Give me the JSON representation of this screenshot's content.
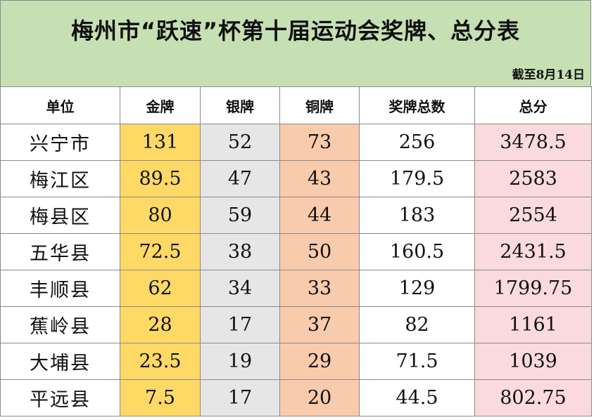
{
  "header": {
    "title": "梅州市“跃速”杯第十届运动会奖牌、总分表",
    "date_note": "截至8月14日"
  },
  "columns": [
    "单位",
    "金牌",
    "银牌",
    "铜牌",
    "奖牌总数",
    "总分"
  ],
  "rows": [
    {
      "unit": "兴宁市",
      "gold": "131",
      "silver": "52",
      "bronze": "73",
      "total": "256",
      "score": "3478.5"
    },
    {
      "unit": "梅江区",
      "gold": "89.5",
      "silver": "47",
      "bronze": "43",
      "total": "179.5",
      "score": "2583"
    },
    {
      "unit": "梅县区",
      "gold": "80",
      "silver": "59",
      "bronze": "44",
      "total": "183",
      "score": "2554"
    },
    {
      "unit": "五华县",
      "gold": "72.5",
      "silver": "38",
      "bronze": "50",
      "total": "160.5",
      "score": "2431.5"
    },
    {
      "unit": "丰顺县",
      "gold": "62",
      "silver": "34",
      "bronze": "33",
      "total": "129",
      "score": "1799.75"
    },
    {
      "unit": "蕉岭县",
      "gold": "28",
      "silver": "17",
      "bronze": "37",
      "total": "82",
      "score": "1161"
    },
    {
      "unit": "大埔县",
      "gold": "23.5",
      "silver": "19",
      "bronze": "29",
      "total": "71.5",
      "score": "1039"
    },
    {
      "unit": "平远县",
      "gold": "7.5",
      "silver": "17",
      "bronze": "20",
      "total": "44.5",
      "score": "802.75"
    }
  ],
  "colors": {
    "header_bg": "#c6e0b4",
    "gold_col": "#ffd966",
    "silver_col": "#e7e6e6",
    "bronze_col": "#f8cbad",
    "score_col": "#fadadd"
  }
}
